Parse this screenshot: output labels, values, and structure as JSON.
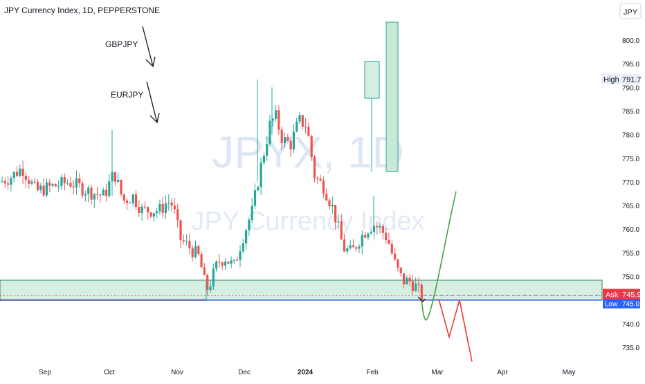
{
  "header": {
    "title": "JPY Currency Index, 1D, PEPPERSTONE"
  },
  "currency_badge": "JPY",
  "watermark": {
    "ticker": "JPYX, 1D",
    "name": "JPY Currency Index"
  },
  "price_labels": {
    "high": {
      "label": "High",
      "value": "791.7"
    },
    "ask": {
      "label": "Ask",
      "value": "745.9"
    },
    "low": {
      "label": "Low",
      "value": "745.0"
    }
  },
  "annotations": [
    {
      "text": "GBPJPY"
    },
    {
      "text": "EURJPY"
    }
  ],
  "colors": {
    "up": "#26a69a",
    "down": "#ef5350",
    "zone_fill": "#d7efe2",
    "zone_border": "#2e7d4f",
    "level_line": "#2962ff",
    "green_path": "#43a047",
    "red_path": "#e53935",
    "badge_red": "#f23645"
  },
  "chart_data": {
    "type": "candlestick",
    "title": "JPY Currency Index, 1D, PEPPERSTONE",
    "y_ticks": [
      "735.0",
      "740.0",
      "745.0",
      "750.0",
      "755.0",
      "760.0",
      "765.0",
      "770.0",
      "775.0",
      "780.0",
      "785.0",
      "790.0",
      "795.0",
      "800.0"
    ],
    "x_ticks": [
      "Sep",
      "Oct",
      "Nov",
      "Dec",
      "2024",
      "Feb",
      "Mar",
      "Apr",
      "May"
    ],
    "ylim": [
      731.5,
      806.5
    ],
    "price_anchors": [
      {
        "x": 0,
        "y": 770
      },
      {
        "x": 15,
        "y": 771
      },
      {
        "x": 32,
        "y": 773
      },
      {
        "x": 52,
        "y": 768
      },
      {
        "x": 75,
        "y": 769
      },
      {
        "x": 100,
        "y": 770
      },
      {
        "x": 128,
        "y": 768
      },
      {
        "x": 150,
        "y": 767
      },
      {
        "x": 165,
        "y": 772
      },
      {
        "x": 178,
        "y": 766
      },
      {
        "x": 192,
        "y": 767
      },
      {
        "x": 205,
        "y": 764
      },
      {
        "x": 220,
        "y": 764
      },
      {
        "x": 232,
        "y": 764
      },
      {
        "x": 242,
        "y": 766
      },
      {
        "x": 250,
        "y": 765
      },
      {
        "x": 260,
        "y": 758
      },
      {
        "x": 275,
        "y": 756
      },
      {
        "x": 288,
        "y": 754
      },
      {
        "x": 298,
        "y": 747
      },
      {
        "x": 305,
        "y": 749
      },
      {
        "x": 315,
        "y": 753
      },
      {
        "x": 325,
        "y": 754
      },
      {
        "x": 338,
        "y": 752
      },
      {
        "x": 350,
        "y": 758
      },
      {
        "x": 365,
        "y": 764
      },
      {
        "x": 375,
        "y": 772
      },
      {
        "x": 390,
        "y": 782
      },
      {
        "x": 398,
        "y": 784
      },
      {
        "x": 408,
        "y": 779
      },
      {
        "x": 420,
        "y": 778
      },
      {
        "x": 432,
        "y": 783
      },
      {
        "x": 443,
        "y": 782
      },
      {
        "x": 455,
        "y": 771
      },
      {
        "x": 468,
        "y": 769
      },
      {
        "x": 482,
        "y": 764
      },
      {
        "x": 496,
        "y": 756
      },
      {
        "x": 508,
        "y": 755
      },
      {
        "x": 520,
        "y": 758
      },
      {
        "x": 530,
        "y": 760
      },
      {
        "x": 540,
        "y": 761
      },
      {
        "x": 550,
        "y": 760
      },
      {
        "x": 560,
        "y": 758
      },
      {
        "x": 572,
        "y": 752
      },
      {
        "x": 582,
        "y": 749
      },
      {
        "x": 592,
        "y": 749
      },
      {
        "x": 600,
        "y": 748
      },
      {
        "x": 610,
        "y": 745.5
      }
    ],
    "support_zone": {
      "low": 745.0,
      "high": 749.2
    },
    "low_level": 745.0,
    "ask_level": 745.9,
    "projection_boxes": [
      {
        "low": 787.7,
        "high": 795.5,
        "wick_low": 772.2
      },
      {
        "low": 772.2,
        "high": 803.8
      }
    ],
    "projections": {
      "green": [
        {
          "price": 745.2
        },
        {
          "price": 741.0
        },
        {
          "price": 768.0
        }
      ],
      "red": [
        {
          "price": 745.2
        },
        {
          "price": 737.2
        },
        {
          "price": 745.0
        },
        {
          "price": 732.0
        }
      ]
    }
  }
}
